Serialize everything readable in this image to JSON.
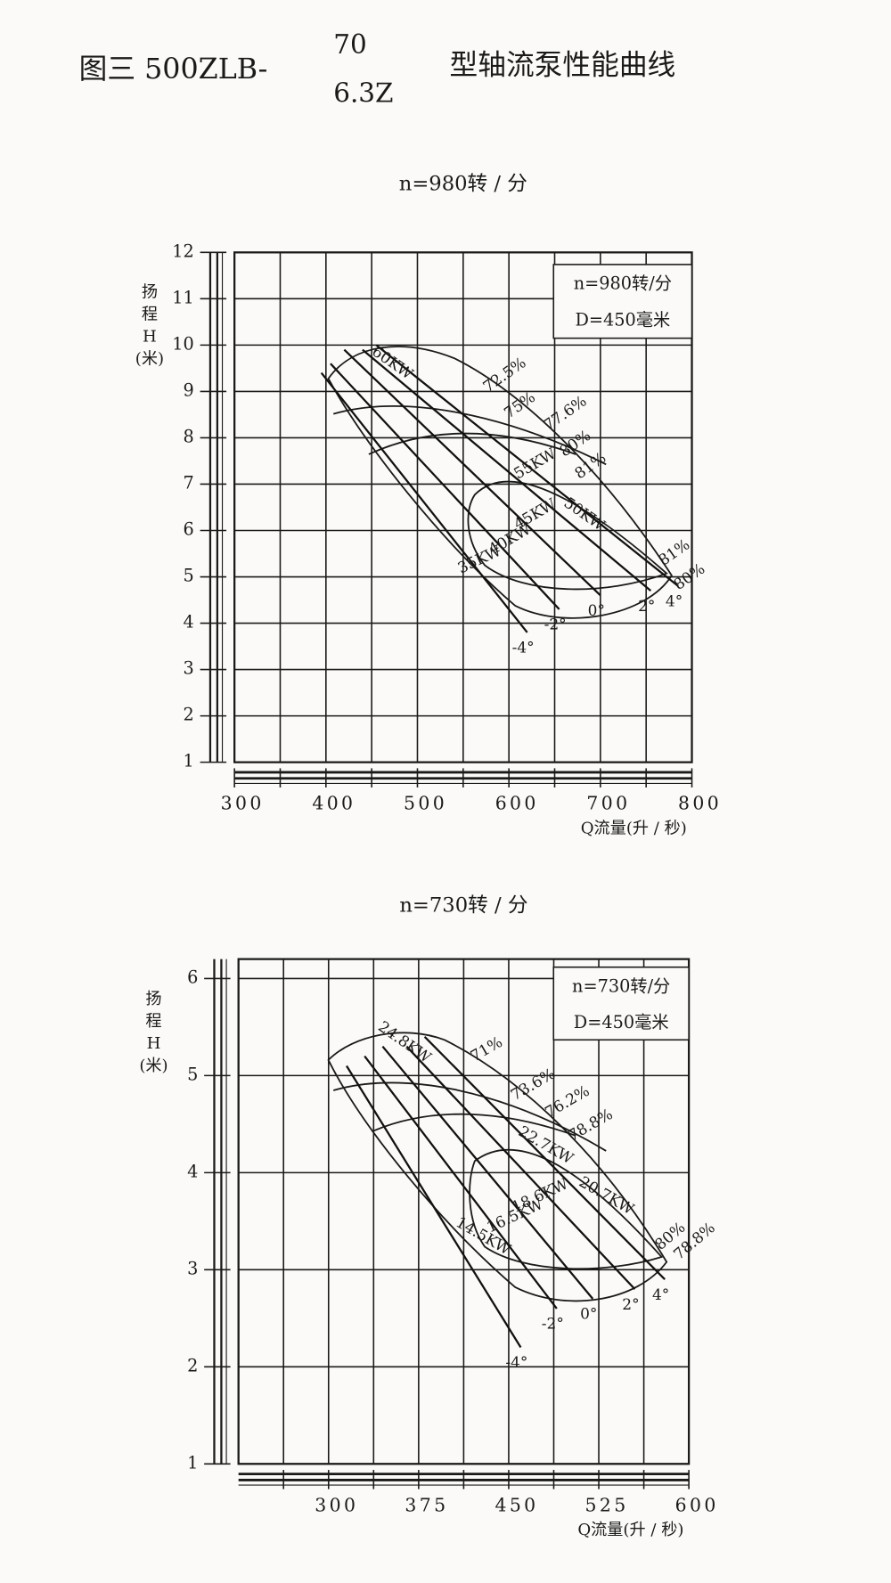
{
  "title": {
    "prefix": "图三 500ZLB-",
    "numerator": "70",
    "denominator": "6.3Z",
    "suffix": "型轴流泵性能曲线"
  },
  "chart_data": [
    {
      "type": "line",
      "title": "n=980转 / 分",
      "x_label": "Q流量(升 / 秒)",
      "y_label": [
        "扬",
        "程",
        "H",
        "(米)"
      ],
      "info": [
        "n=980转/分",
        "D=450毫米"
      ],
      "xlim": [
        300,
        800
      ],
      "xticks": [
        300,
        400,
        500,
        600,
        700,
        800
      ],
      "xgrid": [
        350,
        450,
        550,
        650,
        750
      ],
      "ylim": [
        1,
        12
      ],
      "yticks": [
        1,
        2,
        3,
        4,
        5,
        6,
        7,
        8,
        9,
        10,
        11,
        12
      ],
      "series": [
        {
          "name": "-4°",
          "color": "#111111",
          "x": [
            395,
            620
          ],
          "values": [
            9.4,
            3.8
          ]
        },
        {
          "name": "-2°",
          "color": "#111111",
          "x": [
            405,
            655
          ],
          "values": [
            9.6,
            4.3
          ]
        },
        {
          "name": "0°",
          "color": "#111111",
          "x": [
            420,
            700
          ],
          "values": [
            9.9,
            4.6
          ]
        },
        {
          "name": "2°",
          "color": "#111111",
          "x": [
            440,
            755
          ],
          "values": [
            9.9,
            4.7
          ]
        },
        {
          "name": "4°",
          "color": "#111111",
          "x": [
            455,
            785
          ],
          "values": [
            10,
            4.8
          ]
        }
      ],
      "annotations": [
        "72.5%",
        "75%",
        "77.6%",
        "80%",
        "81%",
        "81%",
        "80%",
        "60KW",
        "55KW",
        "50KW",
        "45KW",
        "40KW",
        "35KW"
      ]
    },
    {
      "type": "line",
      "title": "n=730转 / 分",
      "x_label": "Q流量(升 / 秒)",
      "y_label": [
        "扬",
        "程",
        "H",
        "(米)"
      ],
      "info": [
        "n=730转/分",
        "D=450毫米"
      ],
      "xlim": [
        225,
        600
      ],
      "xticks": [
        300,
        375,
        450,
        525,
        600
      ],
      "xgrid": [
        262.5,
        337.5,
        412.5,
        487.5,
        562.5
      ],
      "ylim": [
        1,
        6.2
      ],
      "yticks": [
        1,
        2,
        3,
        4,
        5,
        6
      ],
      "series": [
        {
          "name": "-4°",
          "color": "#111111",
          "x": [
            315,
            460
          ],
          "values": [
            5.1,
            2.2
          ]
        },
        {
          "name": "-2°",
          "color": "#111111",
          "x": [
            330,
            490
          ],
          "values": [
            5.2,
            2.6
          ]
        },
        {
          "name": "0°",
          "color": "#111111",
          "x": [
            345,
            520
          ],
          "values": [
            5.3,
            2.7
          ]
        },
        {
          "name": "2°",
          "color": "#111111",
          "x": [
            365,
            555
          ],
          "values": [
            5.3,
            2.8
          ]
        },
        {
          "name": "4°",
          "color": "#111111",
          "x": [
            380,
            580
          ],
          "values": [
            5.4,
            2.9
          ]
        }
      ],
      "annotations": [
        "71%",
        "73.6%",
        "76.2%",
        "78.8%",
        "80%",
        "78.8%",
        "24.8KW",
        "22.7KW",
        "20.7KW",
        "18.6KW",
        "16.5KW",
        "14.5KW"
      ]
    }
  ]
}
